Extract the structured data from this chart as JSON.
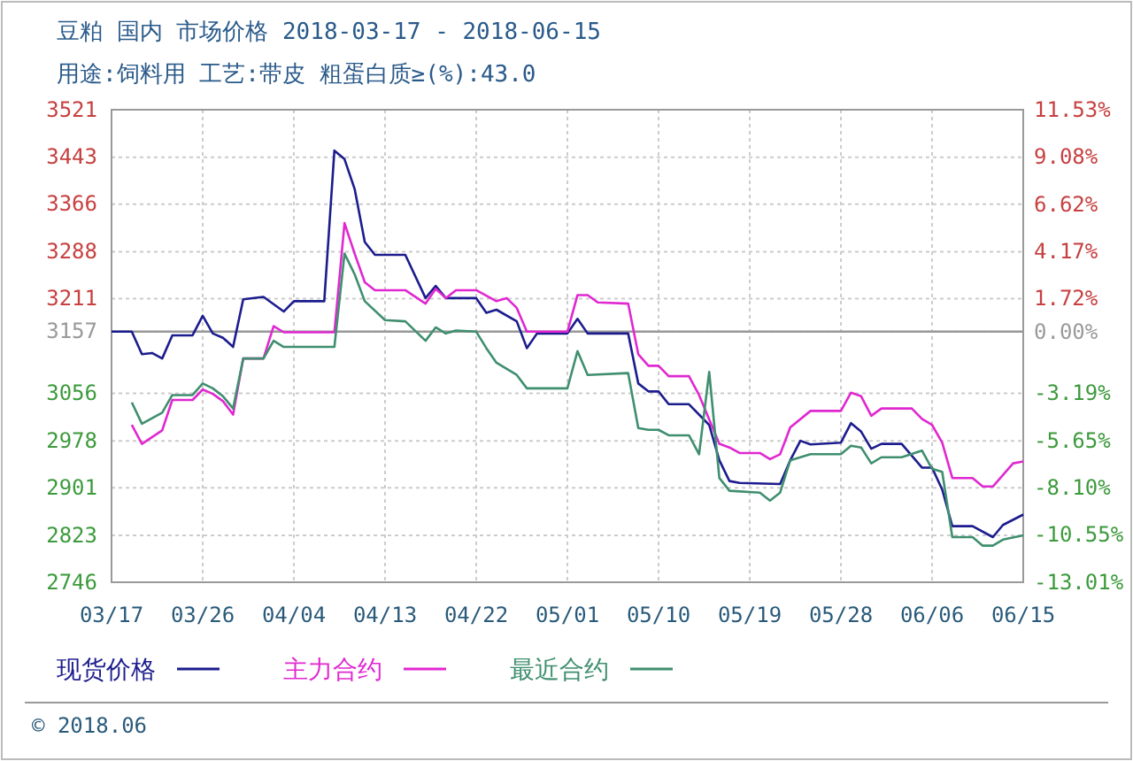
{
  "chart_data": {
    "type": "line",
    "title": "豆粕 国内 市场价格 2018-03-17 - 2018-06-15",
    "subtitle": "用途:饲料用 工艺:带皮 粗蛋白质≥(%):43.0",
    "annotations": [
      "© 2018.06"
    ],
    "xlim": [
      "2018-03-17",
      "2018-06-15"
    ],
    "xticks": [
      {
        "value": "2018-03-17",
        "label": "03/17"
      },
      {
        "value": "2018-03-26",
        "label": "03/26"
      },
      {
        "value": "2018-04-04",
        "label": "04/04"
      },
      {
        "value": "2018-04-13",
        "label": "04/13"
      },
      {
        "value": "2018-04-22",
        "label": "04/22"
      },
      {
        "value": "2018-05-01",
        "label": "05/01"
      },
      {
        "value": "2018-05-10",
        "label": "05/10"
      },
      {
        "value": "2018-05-19",
        "label": "05/19"
      },
      {
        "value": "2018-05-28",
        "label": "05/28"
      },
      {
        "value": "2018-06-06",
        "label": "06/06"
      },
      {
        "value": "2018-06-15",
        "label": "06/15"
      }
    ],
    "ylim": [
      2746,
      3521
    ],
    "yticks": [
      2746,
      2823,
      2901,
      2978,
      3056,
      3157,
      3211,
      3288,
      3366,
      3443,
      3521
    ],
    "y2lim": [
      -13.01,
      11.53
    ],
    "y2ticks": [
      {
        "value": -13.01,
        "label": "-13.01%"
      },
      {
        "value": -10.55,
        "label": "-10.55%"
      },
      {
        "value": -8.1,
        "label": "-8.10%"
      },
      {
        "value": -5.65,
        "label": "-5.65%"
      },
      {
        "value": -3.19,
        "label": "-3.19%"
      },
      {
        "value": 0,
        "label": "0.00%"
      },
      {
        "value": 1.72,
        "label": "1.72%"
      },
      {
        "value": 4.17,
        "label": "4.17%"
      },
      {
        "value": 6.62,
        "label": "6.62%"
      },
      {
        "value": 9.08,
        "label": "9.08%"
      },
      {
        "value": 11.53,
        "label": "11.53%"
      }
    ],
    "ref_lines": [
      {
        "axis": "y",
        "value": 3157,
        "color": "#999999"
      }
    ],
    "grid": true,
    "legend": "bottom",
    "series": [
      {
        "name": "现货价格",
        "color": "#1c1c8e",
        "x": [
          "2018-03-17",
          "2018-03-19",
          "2018-03-20",
          "2018-03-21",
          "2018-03-22",
          "2018-03-23",
          "2018-03-25",
          "2018-03-26",
          "2018-03-27",
          "2018-03-28",
          "2018-03-29",
          "2018-03-30",
          "2018-04-01",
          "2018-04-03",
          "2018-04-04",
          "2018-04-07",
          "2018-04-08",
          "2018-04-09",
          "2018-04-10",
          "2018-04-11",
          "2018-04-12",
          "2018-04-15",
          "2018-04-17",
          "2018-04-18",
          "2018-04-19",
          "2018-04-22",
          "2018-04-23",
          "2018-04-24",
          "2018-04-26",
          "2018-04-27",
          "2018-04-28",
          "2018-05-01",
          "2018-05-02",
          "2018-05-03",
          "2018-05-07",
          "2018-05-08",
          "2018-05-09",
          "2018-05-10",
          "2018-05-11",
          "2018-05-13",
          "2018-05-15",
          "2018-05-16",
          "2018-05-17",
          "2018-05-18",
          "2018-05-22",
          "2018-05-23",
          "2018-05-24",
          "2018-05-25",
          "2018-05-28",
          "2018-05-29",
          "2018-05-30",
          "2018-05-31",
          "2018-06-01",
          "2018-06-03",
          "2018-06-05",
          "2018-06-06",
          "2018-06-07",
          "2018-06-08",
          "2018-06-10",
          "2018-06-12",
          "2018-06-13",
          "2018-06-15"
        ],
        "values": [
          3157,
          3157,
          3120,
          3122,
          3113,
          3151,
          3151,
          3183,
          3154,
          3147,
          3132,
          3210,
          3214,
          3190,
          3207,
          3207,
          3454,
          3440,
          3391,
          3304,
          3283,
          3283,
          3212,
          3232,
          3212,
          3212,
          3188,
          3193,
          3174,
          3130,
          3154,
          3154,
          3178,
          3154,
          3154,
          3072,
          3059,
          3059,
          3038,
          3038,
          3004,
          2946,
          2912,
          2909,
          2907,
          2946,
          2978,
          2972,
          2975,
          3007,
          2993,
          2965,
          2973,
          2973,
          2934,
          2934,
          2898,
          2838,
          2838,
          2820,
          2840,
          2857
        ]
      },
      {
        "name": "主力合约",
        "color": "#e028d0",
        "x": [
          "2018-03-19",
          "2018-03-20",
          "2018-03-22",
          "2018-03-23",
          "2018-03-25",
          "2018-03-26",
          "2018-03-27",
          "2018-03-28",
          "2018-03-29",
          "2018-03-30",
          "2018-04-01",
          "2018-04-02",
          "2018-04-03",
          "2018-04-08",
          "2018-04-09",
          "2018-04-10",
          "2018-04-11",
          "2018-04-12",
          "2018-04-15",
          "2018-04-17",
          "2018-04-18",
          "2018-04-19",
          "2018-04-20",
          "2018-04-22",
          "2018-04-24",
          "2018-04-25",
          "2018-04-26",
          "2018-04-27",
          "2018-04-28",
          "2018-05-01",
          "2018-05-02",
          "2018-05-03",
          "2018-05-04",
          "2018-05-07",
          "2018-05-08",
          "2018-05-09",
          "2018-05-10",
          "2018-05-11",
          "2018-05-13",
          "2018-05-14",
          "2018-05-16",
          "2018-05-17",
          "2018-05-18",
          "2018-05-20",
          "2018-05-21",
          "2018-05-22",
          "2018-05-23",
          "2018-05-25",
          "2018-05-28",
          "2018-05-29",
          "2018-05-30",
          "2018-05-31",
          "2018-06-01",
          "2018-06-04",
          "2018-06-05",
          "2018-06-06",
          "2018-06-07",
          "2018-06-08",
          "2018-06-10",
          "2018-06-11",
          "2018-06-12",
          "2018-06-14",
          "2018-06-15"
        ],
        "values": [
          3004,
          2973,
          2995,
          3045,
          3045,
          3062,
          3055,
          3043,
          3021,
          3113,
          3113,
          3166,
          3156,
          3156,
          3335,
          3285,
          3238,
          3225,
          3225,
          3203,
          3227,
          3212,
          3225,
          3225,
          3207,
          3212,
          3196,
          3157,
          3157,
          3157,
          3217,
          3217,
          3205,
          3203,
          3120,
          3101,
          3101,
          3084,
          3084,
          3053,
          2973,
          2967,
          2958,
          2958,
          2948,
          2956,
          3000,
          3027,
          3027,
          3057,
          3051,
          3019,
          3031,
          3031,
          3014,
          3004,
          2975,
          2917,
          2917,
          2903,
          2903,
          2941,
          2944
        ]
      },
      {
        "name": "最近合约",
        "color": "#3f8f6f",
        "x": [
          "2018-03-19",
          "2018-03-20",
          "2018-03-22",
          "2018-03-23",
          "2018-03-25",
          "2018-03-26",
          "2018-03-27",
          "2018-03-28",
          "2018-03-29",
          "2018-03-30",
          "2018-04-01",
          "2018-04-02",
          "2018-04-03",
          "2018-04-08",
          "2018-04-09",
          "2018-04-10",
          "2018-04-11",
          "2018-04-13",
          "2018-04-15",
          "2018-04-17",
          "2018-04-18",
          "2018-04-19",
          "2018-04-20",
          "2018-04-22",
          "2018-04-23",
          "2018-04-24",
          "2018-04-26",
          "2018-04-27",
          "2018-05-01",
          "2018-05-02",
          "2018-05-03",
          "2018-05-07",
          "2018-05-08",
          "2018-05-09",
          "2018-05-10",
          "2018-05-11",
          "2018-05-13",
          "2018-05-14",
          "2018-05-15",
          "2018-05-16",
          "2018-05-17",
          "2018-05-20",
          "2018-05-21",
          "2018-05-22",
          "2018-05-23",
          "2018-05-25",
          "2018-05-28",
          "2018-05-29",
          "2018-05-30",
          "2018-05-31",
          "2018-06-01",
          "2018-06-03",
          "2018-06-05",
          "2018-06-06",
          "2018-06-07",
          "2018-06-08",
          "2018-06-10",
          "2018-06-11",
          "2018-06-12",
          "2018-06-13",
          "2018-06-15"
        ],
        "values": [
          3041,
          3006,
          3024,
          3053,
          3053,
          3072,
          3064,
          3051,
          3031,
          3113,
          3113,
          3142,
          3132,
          3132,
          3285,
          3251,
          3207,
          3176,
          3174,
          3142,
          3164,
          3154,
          3159,
          3157,
          3130,
          3106,
          3086,
          3064,
          3064,
          3125,
          3086,
          3089,
          2999,
          2996,
          2996,
          2987,
          2987,
          2956,
          3091,
          2917,
          2896,
          2893,
          2880,
          2893,
          2946,
          2956,
          2956,
          2970,
          2967,
          2941,
          2951,
          2951,
          2962,
          2932,
          2927,
          2820,
          2820,
          2806,
          2806,
          2816,
          2823
        ]
      }
    ]
  }
}
